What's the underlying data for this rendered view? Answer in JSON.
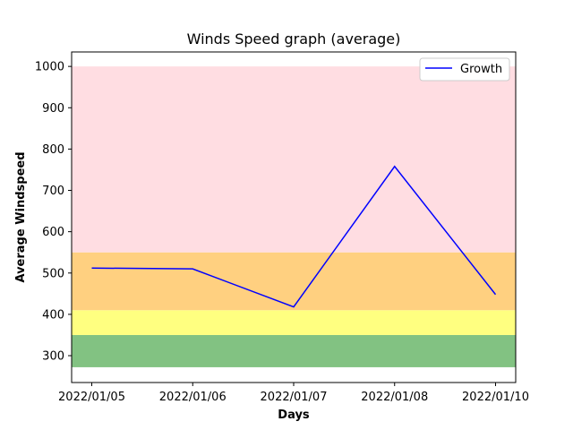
{
  "chart_data": {
    "type": "line",
    "title": "Winds Speed graph (average)",
    "xlabel": "Days",
    "ylabel": "Average Windspeed",
    "categories": [
      "2022/01/05",
      "2022/01/06",
      "2022/01/07",
      "2022/01/08",
      "2022/01/10"
    ],
    "series": [
      {
        "name": "Growth",
        "color": "#0000ff",
        "values": [
          512,
          510,
          418,
          758,
          448
        ]
      }
    ],
    "y_ticks": [
      300,
      400,
      500,
      600,
      700,
      800,
      900,
      1000
    ],
    "ylim": [
      235,
      1035
    ],
    "bands": [
      {
        "from": 272,
        "to": 350,
        "color": "#82c282"
      },
      {
        "from": 350,
        "to": 410,
        "color": "#ffff80"
      },
      {
        "from": 410,
        "to": 550,
        "color": "#ffd080"
      },
      {
        "from": 550,
        "to": 1000,
        "color": "#ffdde2"
      }
    ],
    "legend": "top-right",
    "grid": false
  }
}
